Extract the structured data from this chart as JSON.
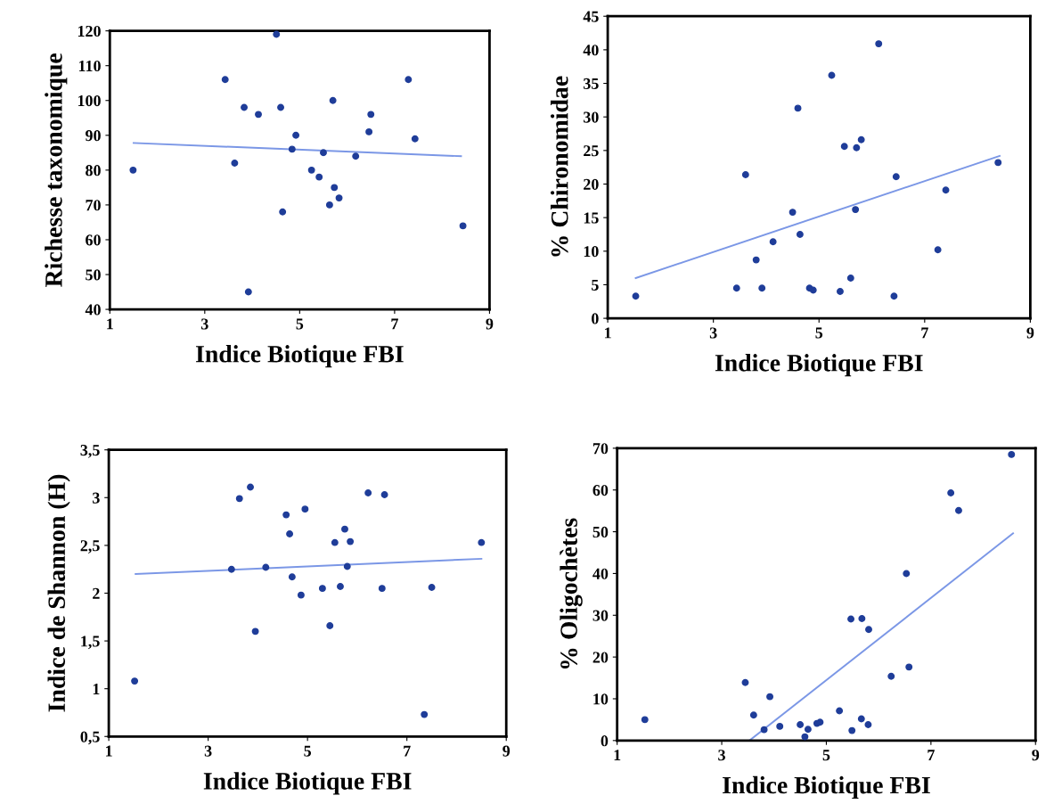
{
  "chart_data": [
    {
      "type": "scatter",
      "xlabel": "Indice Biotique FBI",
      "ylabel": "Richesse taxonomique",
      "xlim": [
        1,
        9
      ],
      "ylim": [
        40,
        120
      ],
      "xticks": [
        1,
        3,
        5,
        7,
        9
      ],
      "yticks": [
        40,
        50,
        60,
        70,
        80,
        90,
        100,
        110,
        120
      ],
      "grid": false,
      "series": [
        {
          "marker": "circle",
          "color": "#1f3d99",
          "x": [
            1.49,
            3.43,
            3.63,
            3.83,
            4.13,
            4.51,
            4.6,
            4.64,
            4.84,
            4.92,
            3.92,
            5.25,
            5.41,
            5.5,
            5.63,
            5.7,
            5.73,
            5.83,
            6.18,
            6.46,
            6.5,
            7.29,
            7.43,
            8.44
          ],
          "values": [
            80,
            106,
            82,
            98,
            96,
            119,
            98,
            68,
            86,
            90,
            45,
            80,
            78,
            85,
            70,
            100,
            75,
            72,
            84,
            91,
            96,
            106,
            89,
            64
          ]
        },
        {
          "type": "line",
          "color": "#7b97e6",
          "x": [
            1.5,
            8.4
          ],
          "values": [
            87.8,
            84
          ]
        }
      ]
    },
    {
      "type": "scatter",
      "xlabel": "Indice Biotique FBI",
      "ylabel": "% Chironomidae",
      "xlim": [
        1,
        9
      ],
      "ylim": [
        0,
        45
      ],
      "xticks": [
        1,
        3,
        5,
        7,
        9
      ],
      "yticks": [
        0,
        5,
        10,
        15,
        20,
        25,
        30,
        35,
        40,
        45
      ],
      "grid": false,
      "series": [
        {
          "marker": "circle",
          "color": "#1f3d99",
          "x": [
            1.53,
            3.44,
            3.61,
            3.81,
            3.92,
            4.13,
            4.5,
            4.6,
            4.64,
            4.82,
            4.89,
            5.24,
            5.4,
            5.48,
            5.6,
            5.69,
            5.71,
            5.8,
            6.13,
            6.42,
            6.46,
            7.25,
            7.4,
            8.39
          ],
          "values": [
            3.3,
            4.5,
            21.4,
            8.7,
            4.5,
            11.4,
            15.8,
            31.3,
            12.5,
            4.5,
            4.2,
            36.2,
            4.0,
            25.6,
            6.0,
            16.2,
            25.4,
            26.6,
            40.9,
            3.3,
            21.1,
            10.2,
            19.1,
            23.2
          ]
        },
        {
          "type": "line",
          "color": "#7b97e6",
          "x": [
            1.53,
            8.42
          ],
          "values": [
            6.0,
            24.2
          ]
        }
      ]
    },
    {
      "type": "scatter",
      "xlabel": "Indice Biotique FBI",
      "ylabel": "Indice de Shannon (H)",
      "xlim": [
        1,
        9
      ],
      "ylim": [
        0.5,
        3.5
      ],
      "xticks": [
        1,
        3,
        5,
        7,
        9
      ],
      "yticks": [
        {
          "value": 0.5,
          "label": "0,5"
        },
        1,
        {
          "value": 1.5,
          "label": "1,5"
        },
        2,
        {
          "value": 2.5,
          "label": "2,5"
        },
        3,
        {
          "value": 3.5,
          "label": "3,5"
        }
      ],
      "grid": false,
      "series": [
        {
          "marker": "circle",
          "color": "#1f3d99",
          "x": [
            1.52,
            3.47,
            3.63,
            3.85,
            3.95,
            4.16,
            4.57,
            4.64,
            4.69,
            4.87,
            4.95,
            5.3,
            5.45,
            5.55,
            5.66,
            5.75,
            5.8,
            5.86,
            6.22,
            6.55,
            6.5,
            7.35,
            7.5,
            8.5
          ],
          "values": [
            1.08,
            2.25,
            2.99,
            3.11,
            1.6,
            2.27,
            2.82,
            2.62,
            2.17,
            1.98,
            2.88,
            2.05,
            1.66,
            2.53,
            2.07,
            2.67,
            2.28,
            2.54,
            3.05,
            3.03,
            2.05,
            0.73,
            2.06,
            2.53
          ]
        },
        {
          "type": "line",
          "color": "#7b97e6",
          "x": [
            1.54,
            8.5
          ],
          "values": [
            2.2,
            2.36
          ]
        }
      ]
    },
    {
      "type": "scatter",
      "xlabel": "Indice Biotique FBI",
      "ylabel": "% Oligochètes",
      "xlim": [
        1,
        9
      ],
      "ylim": [
        0,
        70
      ],
      "xticks": [
        1,
        3,
        5,
        7,
        9
      ],
      "yticks": [
        0,
        10,
        20,
        30,
        40,
        50,
        60,
        70
      ],
      "grid": false,
      "series": [
        {
          "marker": "circle",
          "color": "#1f3d99",
          "x": [
            1.53,
            3.45,
            3.92,
            3.61,
            3.81,
            4.11,
            4.5,
            4.65,
            4.59,
            4.82,
            4.88,
            5.25,
            5.49,
            5.67,
            5.8,
            5.47,
            5.68,
            5.81,
            6.24,
            6.53,
            6.58,
            7.38,
            7.53,
            8.54
          ],
          "values": [
            5.0,
            13.9,
            10.5,
            6.1,
            2.6,
            3.4,
            3.8,
            2.7,
            0.9,
            4.1,
            4.4,
            7.1,
            2.4,
            5.2,
            3.8,
            29.1,
            29.2,
            26.6,
            15.4,
            40.0,
            17.6,
            59.3,
            55.1,
            68.5
          ]
        },
        {
          "type": "line",
          "color": "#7b97e6",
          "x": [
            3.53,
            8.57
          ],
          "values": [
            0,
            49.6
          ]
        }
      ]
    }
  ]
}
